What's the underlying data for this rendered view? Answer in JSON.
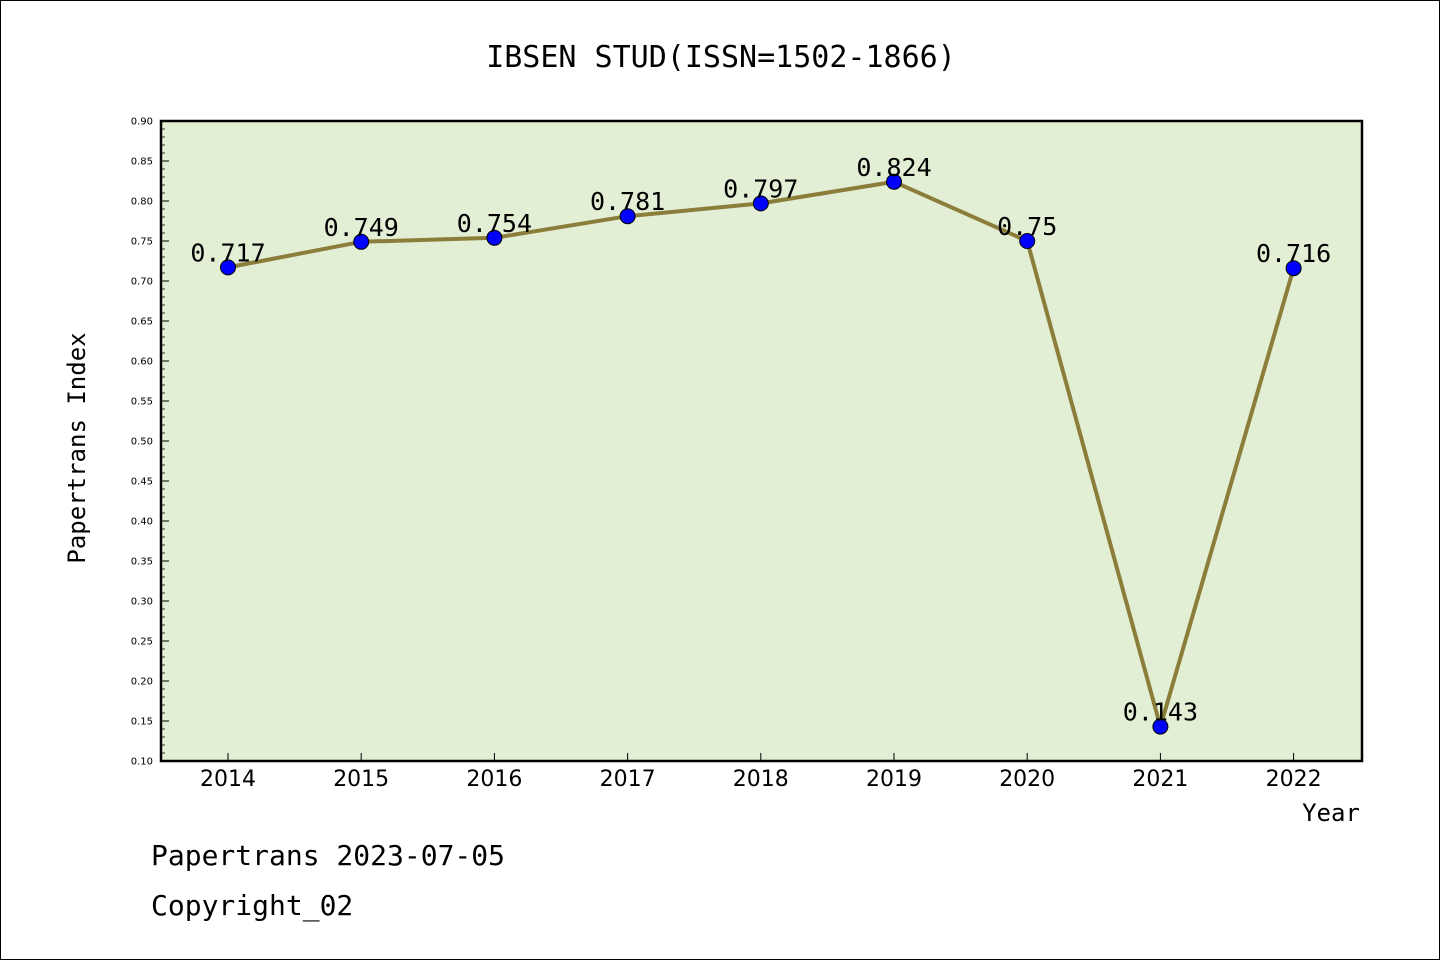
{
  "chart_data": {
    "type": "line",
    "title": "IBSEN STUD(ISSN=1502-1866)",
    "xlabel": "Year",
    "ylabel": "Papertrans Index",
    "categories": [
      "2014",
      "2015",
      "2016",
      "2017",
      "2018",
      "2019",
      "2020",
      "2021",
      "2022"
    ],
    "series": [
      {
        "values": [
          0.717,
          0.749,
          0.754,
          0.781,
          0.797,
          0.824,
          0.75,
          0.143,
          0.716
        ],
        "labels": [
          "0.717",
          "0.749",
          "0.754",
          "0.781",
          "0.797",
          "0.824",
          "0.75",
          "0.143",
          "0.716"
        ],
        "line_color": "#8b7d3a",
        "marker_color": "#0000ff"
      }
    ],
    "ylim": [
      0.1,
      0.9
    ],
    "yticks": [
      "0.10",
      "0.15",
      "0.20",
      "0.25",
      "0.30",
      "0.35",
      "0.40",
      "0.45",
      "0.50",
      "0.55",
      "0.60",
      "0.65",
      "0.70",
      "0.75",
      "0.80",
      "0.85",
      "0.90"
    ],
    "plot_background": "#e2efd5",
    "grid": false,
    "legend": "none"
  },
  "footer": {
    "line1": "Papertrans 2023-07-05",
    "line2": "Copyright_02"
  }
}
